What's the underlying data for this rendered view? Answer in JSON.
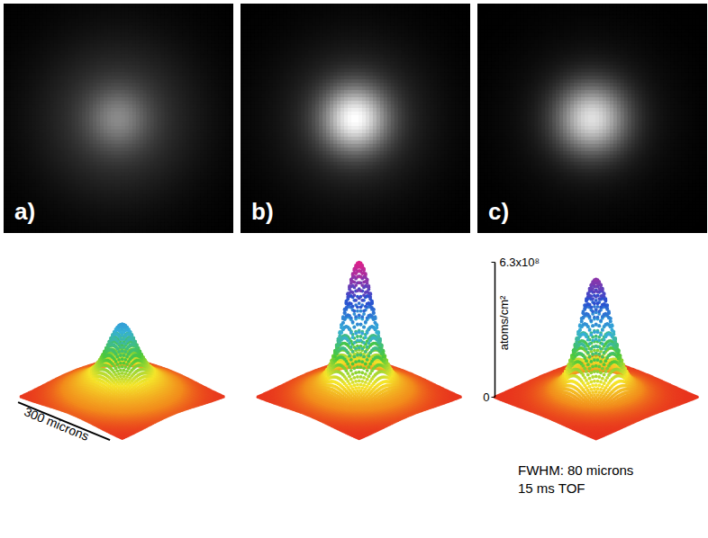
{
  "chart_data": {
    "type": "density_images",
    "panels": [
      {
        "label": "a)",
        "thermal_peak": 160000000.0,
        "thermal_fwhm": 190,
        "condensate_peak": 180000000.0,
        "condensate_fwhm": 70
      },
      {
        "label": "b)",
        "thermal_peak": 140000000.0,
        "thermal_fwhm": 180,
        "condensate_peak": 490000000.0,
        "condensate_fwhm": 75
      },
      {
        "label": "c)",
        "thermal_peak": 100000000.0,
        "thermal_fwhm": 170,
        "condensate_peak": 450000000.0,
        "condensate_fwhm": 80
      }
    ],
    "xlim": [
      -165,
      165
    ],
    "ylim": [
      -165,
      165
    ],
    "zlim": [
      0,
      630000000.0
    ],
    "zticks": [
      0,
      {
        "value": 630000000.0,
        "label": "6.3x10⁸"
      }
    ],
    "z_label": "atoms/cm²",
    "scale_bar": {
      "length": 300,
      "label": "300 microns"
    },
    "annotations": [
      "FWHM: 80 microns",
      "15 ms TOF"
    ]
  }
}
